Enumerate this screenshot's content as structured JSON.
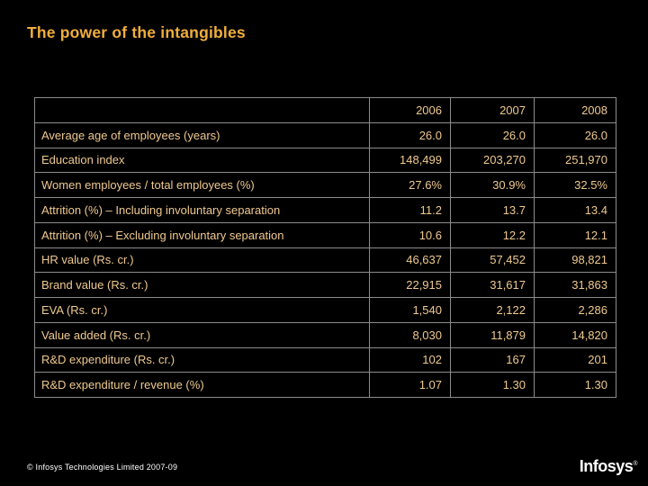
{
  "slide": {
    "title": "The power of the intangibles",
    "footer": "© Infosys Technologies Limited 2007-09",
    "logo_text": "Infosys",
    "logo_mark": "®"
  },
  "colors": {
    "background": "#000000",
    "title_text": "#F0AE3C",
    "table_text": "#EFC98F",
    "table_border": "#8C8C8C",
    "footer_text": "#FFFFFF",
    "logo_text": "#FFFFFF"
  },
  "table": {
    "headers": [
      "",
      "2006",
      "2007",
      "2008"
    ],
    "rows": [
      {
        "label": "Average age of employees (years)",
        "values": [
          "26.0",
          "26.0",
          "26.0"
        ]
      },
      {
        "label": "Education index",
        "values": [
          "148,499",
          "203,270",
          "251,970"
        ]
      },
      {
        "label": "Women employees / total employees (%)",
        "values": [
          "27.6%",
          "30.9%",
          "32.5%"
        ]
      },
      {
        "label": "Attrition (%) – Including involuntary separation",
        "values": [
          "11.2",
          "13.7",
          "13.4"
        ]
      },
      {
        "label": "Attrition (%) – Excluding involuntary separation",
        "values": [
          "10.6",
          "12.2",
          "12.1"
        ]
      },
      {
        "label": "HR value (Rs. cr.)",
        "values": [
          "46,637",
          "57,452",
          "98,821"
        ]
      },
      {
        "label": "Brand value (Rs. cr.)",
        "values": [
          "22,915",
          "31,617",
          "31,863"
        ]
      },
      {
        "label": "EVA (Rs. cr.)",
        "values": [
          "1,540",
          "2,122",
          "2,286"
        ]
      },
      {
        "label": "Value added (Rs. cr.)",
        "values": [
          "8,030",
          "11,879",
          "14,820"
        ]
      },
      {
        "label": "R&D expenditure (Rs. cr.)",
        "values": [
          "102",
          "167",
          "201"
        ]
      },
      {
        "label": "R&D expenditure / revenue (%)",
        "values": [
          "1.07",
          "1.30",
          "1.30"
        ]
      }
    ]
  }
}
